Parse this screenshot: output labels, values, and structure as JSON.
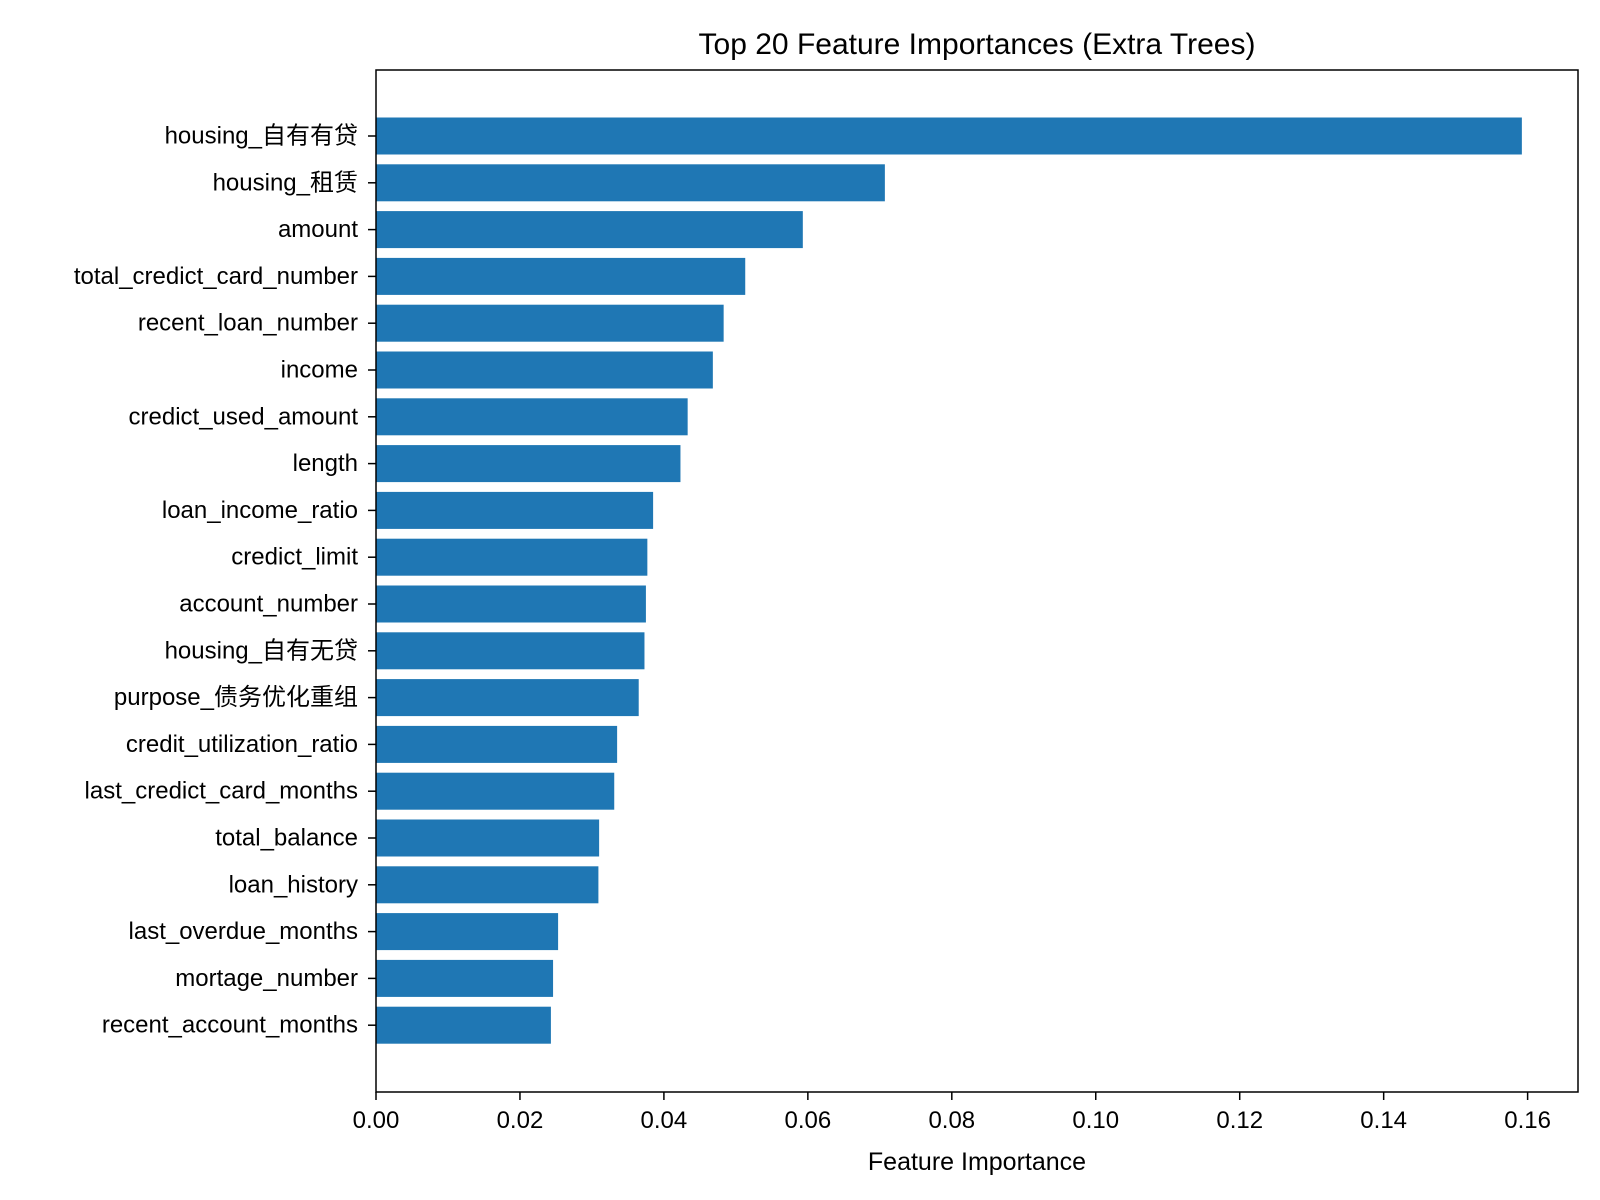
{
  "chart_data": {
    "type": "bar",
    "orientation": "horizontal",
    "title": "Top 20 Feature Importances (Extra Trees)",
    "xlabel": "Feature Importance",
    "ylabel": "",
    "xlim": [
      0,
      0.167
    ],
    "xticks": [
      0.0,
      0.02,
      0.04,
      0.06,
      0.08,
      0.1,
      0.12,
      0.14,
      0.16
    ],
    "xtick_labels": [
      "0.00",
      "0.02",
      "0.04",
      "0.06",
      "0.08",
      "0.10",
      "0.12",
      "0.14",
      "0.16"
    ],
    "grid": false,
    "bar_color": "#1f77b4",
    "categories": [
      "housing_自有有贷",
      "housing_租赁",
      "amount",
      "total_credict_card_number",
      "recent_loan_number",
      "income",
      "credict_used_amount",
      "length",
      "loan_income_ratio",
      "credict_limit",
      "account_number",
      "housing_自有无贷",
      "purpose_债务优化重组",
      "credit_utilization_ratio",
      "last_credict_card_months",
      "total_balance",
      "loan_history",
      "last_overdue_months",
      "mortage_number",
      "recent_account_months"
    ],
    "values": [
      0.1592,
      0.0707,
      0.0593,
      0.0513,
      0.0483,
      0.0468,
      0.0433,
      0.0423,
      0.0385,
      0.0377,
      0.0375,
      0.0373,
      0.0365,
      0.0335,
      0.0331,
      0.031,
      0.0309,
      0.0253,
      0.0246,
      0.0243
    ]
  }
}
